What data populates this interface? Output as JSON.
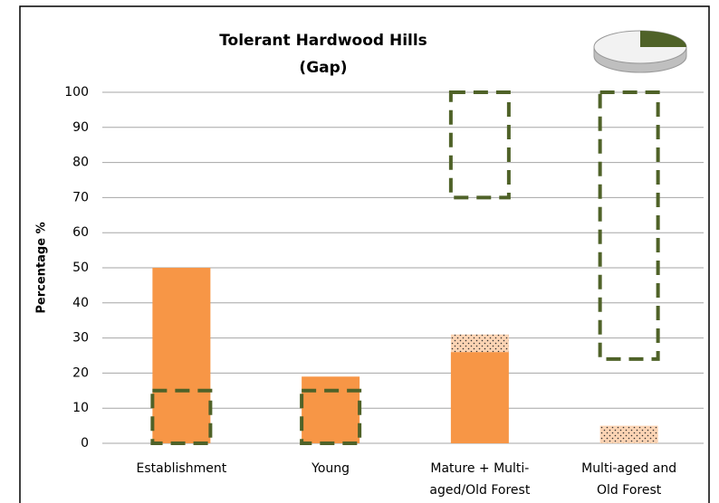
{
  "chart_data": {
    "type": "bar",
    "title": [
      "Tolerant Hardwood Hills",
      "(Gap)"
    ],
    "y_label": "Percentage %",
    "categories": [
      [
        "Establishment"
      ],
      [
        "Young"
      ],
      [
        "Mature + Multi-",
        "aged/Old Forest"
      ],
      [
        "Multi-aged and",
        "Old Forest"
      ]
    ],
    "series": [
      {
        "color": "#f79646",
        "values": [
          50,
          19,
          26,
          null
        ]
      },
      {
        "color": "#fbd4b4",
        "pattern": "dotted",
        "values": [
          null,
          null,
          5,
          5
        ]
      }
    ],
    "ranges": {
      "color": "#4f6228",
      "style": "dashed",
      "low": [
        0,
        0,
        70,
        24
      ],
      "high": [
        15,
        15,
        100,
        100
      ]
    },
    "stacked": true,
    "ylim": [
      0,
      100
    ],
    "yticks": [
      0,
      10,
      20,
      30,
      40,
      50,
      60,
      70,
      80,
      90,
      100
    ],
    "grid": true
  }
}
